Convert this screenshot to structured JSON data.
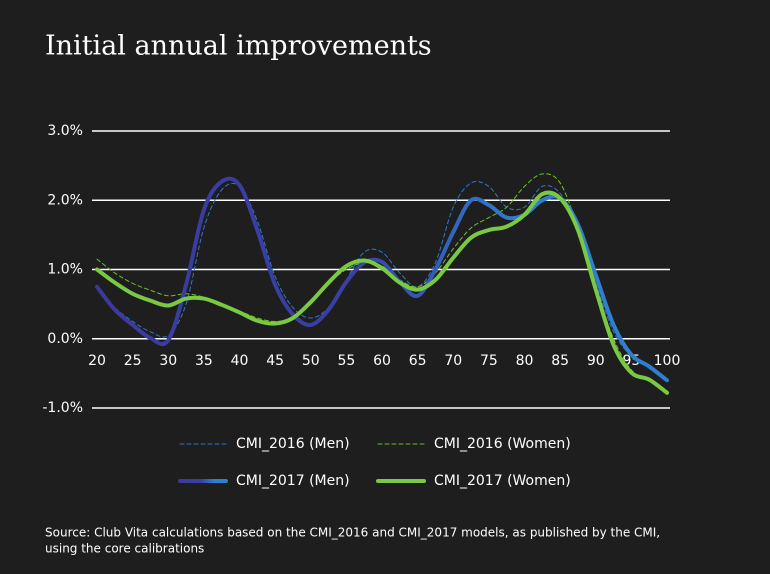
{
  "chart_data": {
    "type": "line",
    "title": "Initial annual improvements",
    "note": [
      "Source: Club Vita calculations based on the CMI_2016 and CMI_2017 models, as published by the CMI,",
      "using the core calibrations"
    ],
    "x": [
      20,
      22.5,
      25,
      27.5,
      30,
      32.5,
      35,
      37.5,
      40,
      42.5,
      45,
      47.5,
      50,
      52.5,
      55,
      57.5,
      60,
      62.5,
      65,
      67.5,
      70,
      72.5,
      75,
      77.5,
      80,
      82.5,
      85,
      87.5,
      90,
      92.5,
      95,
      97.5,
      100
    ],
    "xlim": [
      20,
      100
    ],
    "xticks": [
      20,
      25,
      30,
      35,
      40,
      45,
      50,
      55,
      60,
      65,
      70,
      75,
      80,
      85,
      90,
      95,
      100
    ],
    "ylim": [
      -1,
      3
    ],
    "yticks": [
      {
        "value": -1,
        "label": "-1.0%"
      },
      {
        "value": 0,
        "label": "0.0%"
      },
      {
        "value": 1,
        "label": "1.0%"
      },
      {
        "value": 2,
        "label": "2.0%"
      },
      {
        "value": 3,
        "label": "3.0%"
      }
    ],
    "grid": true,
    "series": [
      {
        "name": "CMI_2016 (Men)",
        "color": "#2f78c8",
        "line_style": "dashed",
        "values": [
          0.75,
          0.45,
          0.25,
          0.1,
          0.05,
          0.5,
          1.6,
          2.15,
          2.2,
          1.7,
          0.9,
          0.45,
          0.3,
          0.45,
          0.85,
          1.25,
          1.25,
          0.95,
          0.75,
          1.1,
          1.9,
          2.25,
          2.2,
          1.9,
          1.9,
          2.2,
          2.1,
          1.6,
          0.8,
          0.1,
          -0.25,
          -0.4,
          -0.6
        ]
      },
      {
        "name": "CMI_2016 (Women)",
        "color": "#6cbf2a",
        "line_style": "dashed",
        "values": [
          1.15,
          0.95,
          0.8,
          0.7,
          0.62,
          0.65,
          0.6,
          0.5,
          0.4,
          0.3,
          0.25,
          0.3,
          0.5,
          0.8,
          1.0,
          1.1,
          1.05,
          0.85,
          0.75,
          0.95,
          1.3,
          1.6,
          1.75,
          1.9,
          2.2,
          2.38,
          2.25,
          1.6,
          0.75,
          0.0,
          -0.45,
          -0.6,
          -0.75
        ]
      },
      {
        "name": "CMI_2017 (Men)",
        "color": "#2f7fd1",
        "line_style": "solid",
        "values": [
          0.75,
          0.42,
          0.2,
          0.01,
          -0.02,
          0.78,
          1.86,
          2.27,
          2.22,
          1.57,
          0.78,
          0.35,
          0.2,
          0.42,
          0.82,
          1.1,
          1.11,
          0.82,
          0.62,
          1.0,
          1.54,
          2.0,
          1.93,
          1.75,
          1.79,
          2.0,
          2.03,
          1.65,
          0.92,
          0.2,
          -0.23,
          -0.4,
          -0.6
        ]
      },
      {
        "name": "CMI_2017 (Women)",
        "color": "#7ac943",
        "line_style": "solid",
        "values": [
          1.0,
          0.81,
          0.65,
          0.55,
          0.48,
          0.58,
          0.58,
          0.49,
          0.38,
          0.26,
          0.22,
          0.3,
          0.53,
          0.81,
          1.05,
          1.13,
          1.02,
          0.81,
          0.71,
          0.85,
          1.17,
          1.46,
          1.57,
          1.62,
          1.79,
          2.09,
          2.03,
          1.57,
          0.71,
          -0.09,
          -0.49,
          -0.59,
          -0.78
        ]
      }
    ]
  }
}
